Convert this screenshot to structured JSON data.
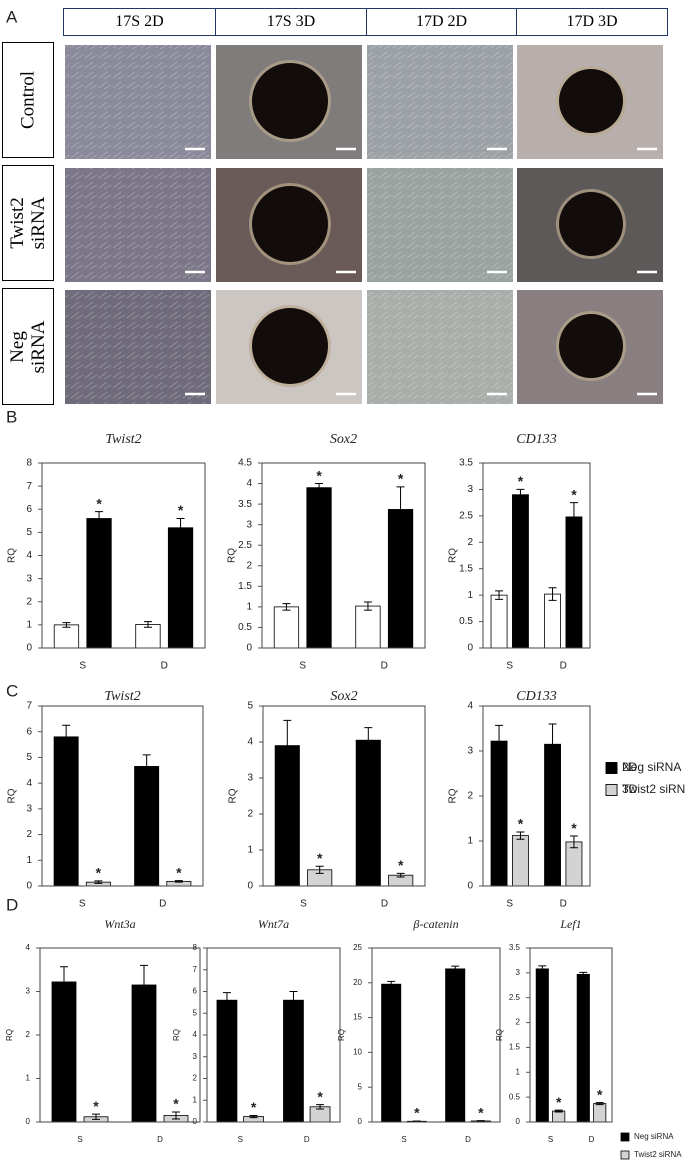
{
  "panel_labels": [
    "A",
    "B",
    "C",
    "D"
  ],
  "image_grid": {
    "columns": [
      "17S 2D",
      "17S 3D",
      "17D 2D",
      "17D 3D"
    ],
    "rows": [
      "Control",
      "Twist2 siRNA",
      "Neg siRNA"
    ]
  },
  "chart_data": [
    {
      "type": "bar",
      "title": "Twist2",
      "ylabel": "RQ",
      "categories": [
        "S",
        "D"
      ],
      "ylim": [
        0,
        8
      ],
      "yticks": [
        0,
        1,
        2,
        3,
        4,
        5,
        6,
        7,
        8
      ],
      "series": [
        {
          "name": "2D",
          "color": "#ffffff",
          "values": [
            1.0,
            1.02
          ],
          "errors": [
            0.1,
            0.12
          ]
        },
        {
          "name": "3D",
          "color": "#000000",
          "values": [
            5.6,
            5.2
          ],
          "errors": [
            0.3,
            0.4
          ],
          "significance": [
            "*",
            "*"
          ]
        }
      ]
    },
    {
      "type": "bar",
      "title": "Sox2",
      "ylabel": "RQ",
      "categories": [
        "S",
        "D"
      ],
      "ylim": [
        0,
        4.5
      ],
      "yticks": [
        0,
        0.5,
        1,
        1.5,
        2,
        2.5,
        3,
        3.5,
        4,
        4.5
      ],
      "series": [
        {
          "name": "2D",
          "color": "#ffffff",
          "values": [
            1.0,
            1.02
          ],
          "errors": [
            0.08,
            0.1
          ]
        },
        {
          "name": "3D",
          "color": "#000000",
          "values": [
            3.9,
            3.37
          ],
          "errors": [
            0.1,
            0.55
          ],
          "significance": [
            "*",
            "*"
          ]
        }
      ]
    },
    {
      "type": "bar",
      "title": "CD133",
      "ylabel": "RQ",
      "categories": [
        "S",
        "D"
      ],
      "ylim": [
        0,
        3.5
      ],
      "yticks": [
        0,
        0.5,
        1,
        1.5,
        2,
        2.5,
        3,
        3.5
      ],
      "legend": "right",
      "series": [
        {
          "name": "2D",
          "color": "#ffffff",
          "values": [
            1.0,
            1.02
          ],
          "errors": [
            0.08,
            0.12
          ]
        },
        {
          "name": "3D",
          "color": "#000000",
          "values": [
            2.9,
            2.48
          ],
          "errors": [
            0.1,
            0.27
          ],
          "significance": [
            "*",
            "*"
          ]
        }
      ]
    },
    {
      "type": "bar",
      "title": "Twist2",
      "ylabel": "RQ",
      "categories": [
        "S",
        "D"
      ],
      "ylim": [
        0,
        7
      ],
      "yticks": [
        0,
        1,
        2,
        3,
        4,
        5,
        6,
        7
      ],
      "series": [
        {
          "name": "Neg siRNA",
          "color": "#000000",
          "values": [
            5.8,
            4.65
          ],
          "errors": [
            0.45,
            0.45
          ]
        },
        {
          "name": "Twist2 siRNA",
          "color": "#d3d3d3",
          "values": [
            0.15,
            0.18
          ],
          "errors": [
            0.05,
            0.03
          ],
          "significance": [
            "*",
            "*"
          ]
        }
      ]
    },
    {
      "type": "bar",
      "title": "Sox2",
      "ylabel": "RQ",
      "categories": [
        "S",
        "D"
      ],
      "ylim": [
        0,
        5
      ],
      "yticks": [
        0,
        1,
        2,
        3,
        4,
        5
      ],
      "series": [
        {
          "name": "Neg siRNA",
          "color": "#000000",
          "values": [
            3.9,
            4.05
          ],
          "errors": [
            0.7,
            0.35
          ]
        },
        {
          "name": "Twist2 siRNA",
          "color": "#d3d3d3",
          "values": [
            0.45,
            0.3
          ],
          "errors": [
            0.1,
            0.05
          ],
          "significance": [
            "*",
            "*"
          ]
        }
      ]
    },
    {
      "type": "bar",
      "title": "CD133",
      "ylabel": "RQ",
      "categories": [
        "S",
        "D"
      ],
      "ylim": [
        0,
        4
      ],
      "yticks": [
        0,
        1,
        2,
        3,
        4
      ],
      "legend": "right",
      "series": [
        {
          "name": "Neg siRNA",
          "color": "#000000",
          "values": [
            3.22,
            3.15
          ],
          "errors": [
            0.35,
            0.45
          ]
        },
        {
          "name": "Twist2 siRNA",
          "color": "#d3d3d3",
          "values": [
            1.12,
            0.98
          ],
          "errors": [
            0.08,
            0.13
          ],
          "significance": [
            "*",
            "*"
          ]
        }
      ]
    },
    {
      "type": "bar",
      "title": "Wnt3a",
      "ylabel": "RQ",
      "categories": [
        "S",
        "D"
      ],
      "ylim": [
        0,
        4
      ],
      "yticks": [
        0,
        1,
        2,
        3,
        4
      ],
      "series": [
        {
          "name": "Neg siRNA",
          "color": "#000000",
          "values": [
            3.22,
            3.15
          ],
          "errors": [
            0.35,
            0.45
          ]
        },
        {
          "name": "Twist2 siRNA",
          "color": "#d3d3d3",
          "values": [
            0.12,
            0.15
          ],
          "errors": [
            0.06,
            0.08
          ],
          "significance": [
            "*",
            "*"
          ]
        }
      ]
    },
    {
      "type": "bar",
      "title": "Wnt7a",
      "ylabel": "RQ",
      "categories": [
        "S",
        "D"
      ],
      "ylim": [
        0,
        8
      ],
      "yticks": [
        0,
        1,
        2,
        3,
        4,
        5,
        6,
        7,
        8
      ],
      "series": [
        {
          "name": "Neg siRNA",
          "color": "#000000",
          "values": [
            5.6,
            5.6
          ],
          "errors": [
            0.35,
            0.4
          ]
        },
        {
          "name": "Twist2 siRNA",
          "color": "#d3d3d3",
          "values": [
            0.25,
            0.7
          ],
          "errors": [
            0.05,
            0.1
          ],
          "significance": [
            "*",
            "*"
          ]
        }
      ]
    },
    {
      "type": "bar",
      "title": "β-catenin",
      "ylabel": "RQ",
      "categories": [
        "S",
        "D"
      ],
      "ylim": [
        0,
        25
      ],
      "yticks": [
        0,
        5,
        10,
        15,
        20,
        25
      ],
      "series": [
        {
          "name": "Neg siRNA",
          "color": "#000000",
          "values": [
            19.8,
            22.0
          ],
          "errors": [
            0.4,
            0.4
          ]
        },
        {
          "name": "Twist2 siRNA",
          "color": "#d3d3d3",
          "values": [
            0.1,
            0.15
          ],
          "errors": [
            0.05,
            0.05
          ],
          "significance": [
            "*",
            "*"
          ]
        }
      ]
    },
    {
      "type": "bar",
      "title": "Lef1",
      "ylabel": "RQ",
      "categories": [
        "S",
        "D"
      ],
      "ylim": [
        0,
        3.5
      ],
      "yticks": [
        0,
        0.5,
        1,
        1.5,
        2,
        2.5,
        3,
        3.5
      ],
      "legend": "bottom-right",
      "series": [
        {
          "name": "Neg siRNA",
          "color": "#000000",
          "values": [
            3.08,
            2.97
          ],
          "errors": [
            0.06,
            0.04
          ]
        },
        {
          "name": "Twist2 siRNA",
          "color": "#d3d3d3",
          "values": [
            0.22,
            0.37
          ],
          "errors": [
            0.02,
            0.02
          ],
          "significance": [
            "*",
            "*"
          ]
        }
      ]
    }
  ]
}
